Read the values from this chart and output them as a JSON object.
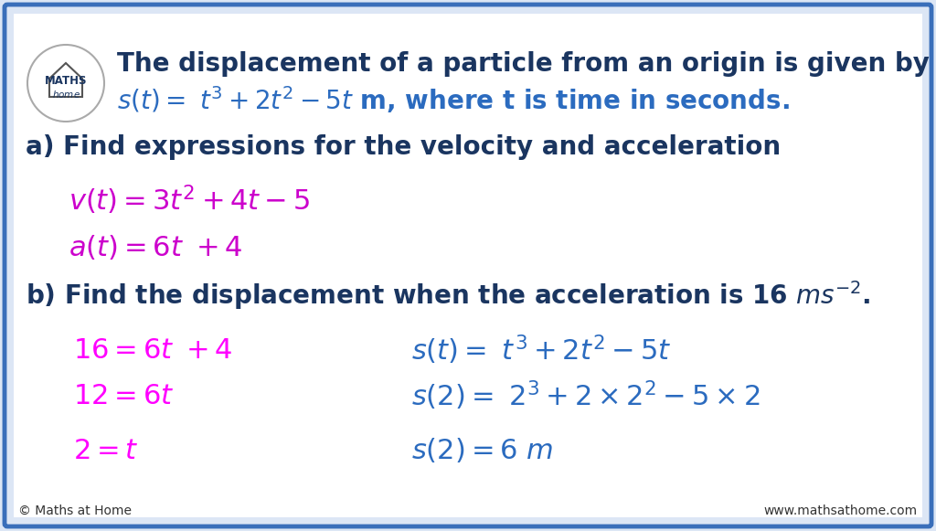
{
  "bg_color": "#ffffff",
  "outer_bg": "#dce6f5",
  "border_color": "#3a6fba",
  "title_text": "The displacement of a particle from an origin is given by",
  "title_color": "#1a3560",
  "formula_s_math": "$s(t) = \\ t^3 + 2t^2 - 5t$",
  "formula_s_rest": " m, where t is time in seconds.",
  "formula_s_color": "#2b6bbf",
  "formula_rest_color": "#1a3560",
  "part_a_label": "a) Find expressions for the velocity and acceleration",
  "part_a_color": "#1a3560",
  "velocity_formula": "$v(t) = 3t^2 + 4t - 5$",
  "velocity_color": "#cc00cc",
  "accel_formula": "$a(t) = 6t \\ + 4$",
  "accel_color": "#cc00cc",
  "part_b_label": "b) Find the displacement when the acceleration is 16 $ms^{-2}$.",
  "part_b_color": "#1a3560",
  "left_col": [
    {
      "text": "$16 = 6t \\ + 4$",
      "color": "#ff00ff"
    },
    {
      "text": "$12 = 6t$",
      "color": "#ff00ff"
    },
    {
      "text": "$2 = t$",
      "color": "#ff00ff"
    }
  ],
  "right_col": [
    {
      "text": "$s(t) = \\ t^3 + 2t^2 - 5t$",
      "color": "#2b6bbf"
    },
    {
      "text": "$s(2) = \\ 2^3 + 2 \\times 2^2 - 5 \\times 2$",
      "color": "#2b6bbf"
    },
    {
      "text": "$s(2) = 6 \\ m$",
      "color": "#2b6bbf"
    }
  ],
  "footer_left": "© Maths at Home",
  "footer_right": "www.mathsathome.com",
  "logo_text1": "MATHS",
  "logo_text2": "home"
}
